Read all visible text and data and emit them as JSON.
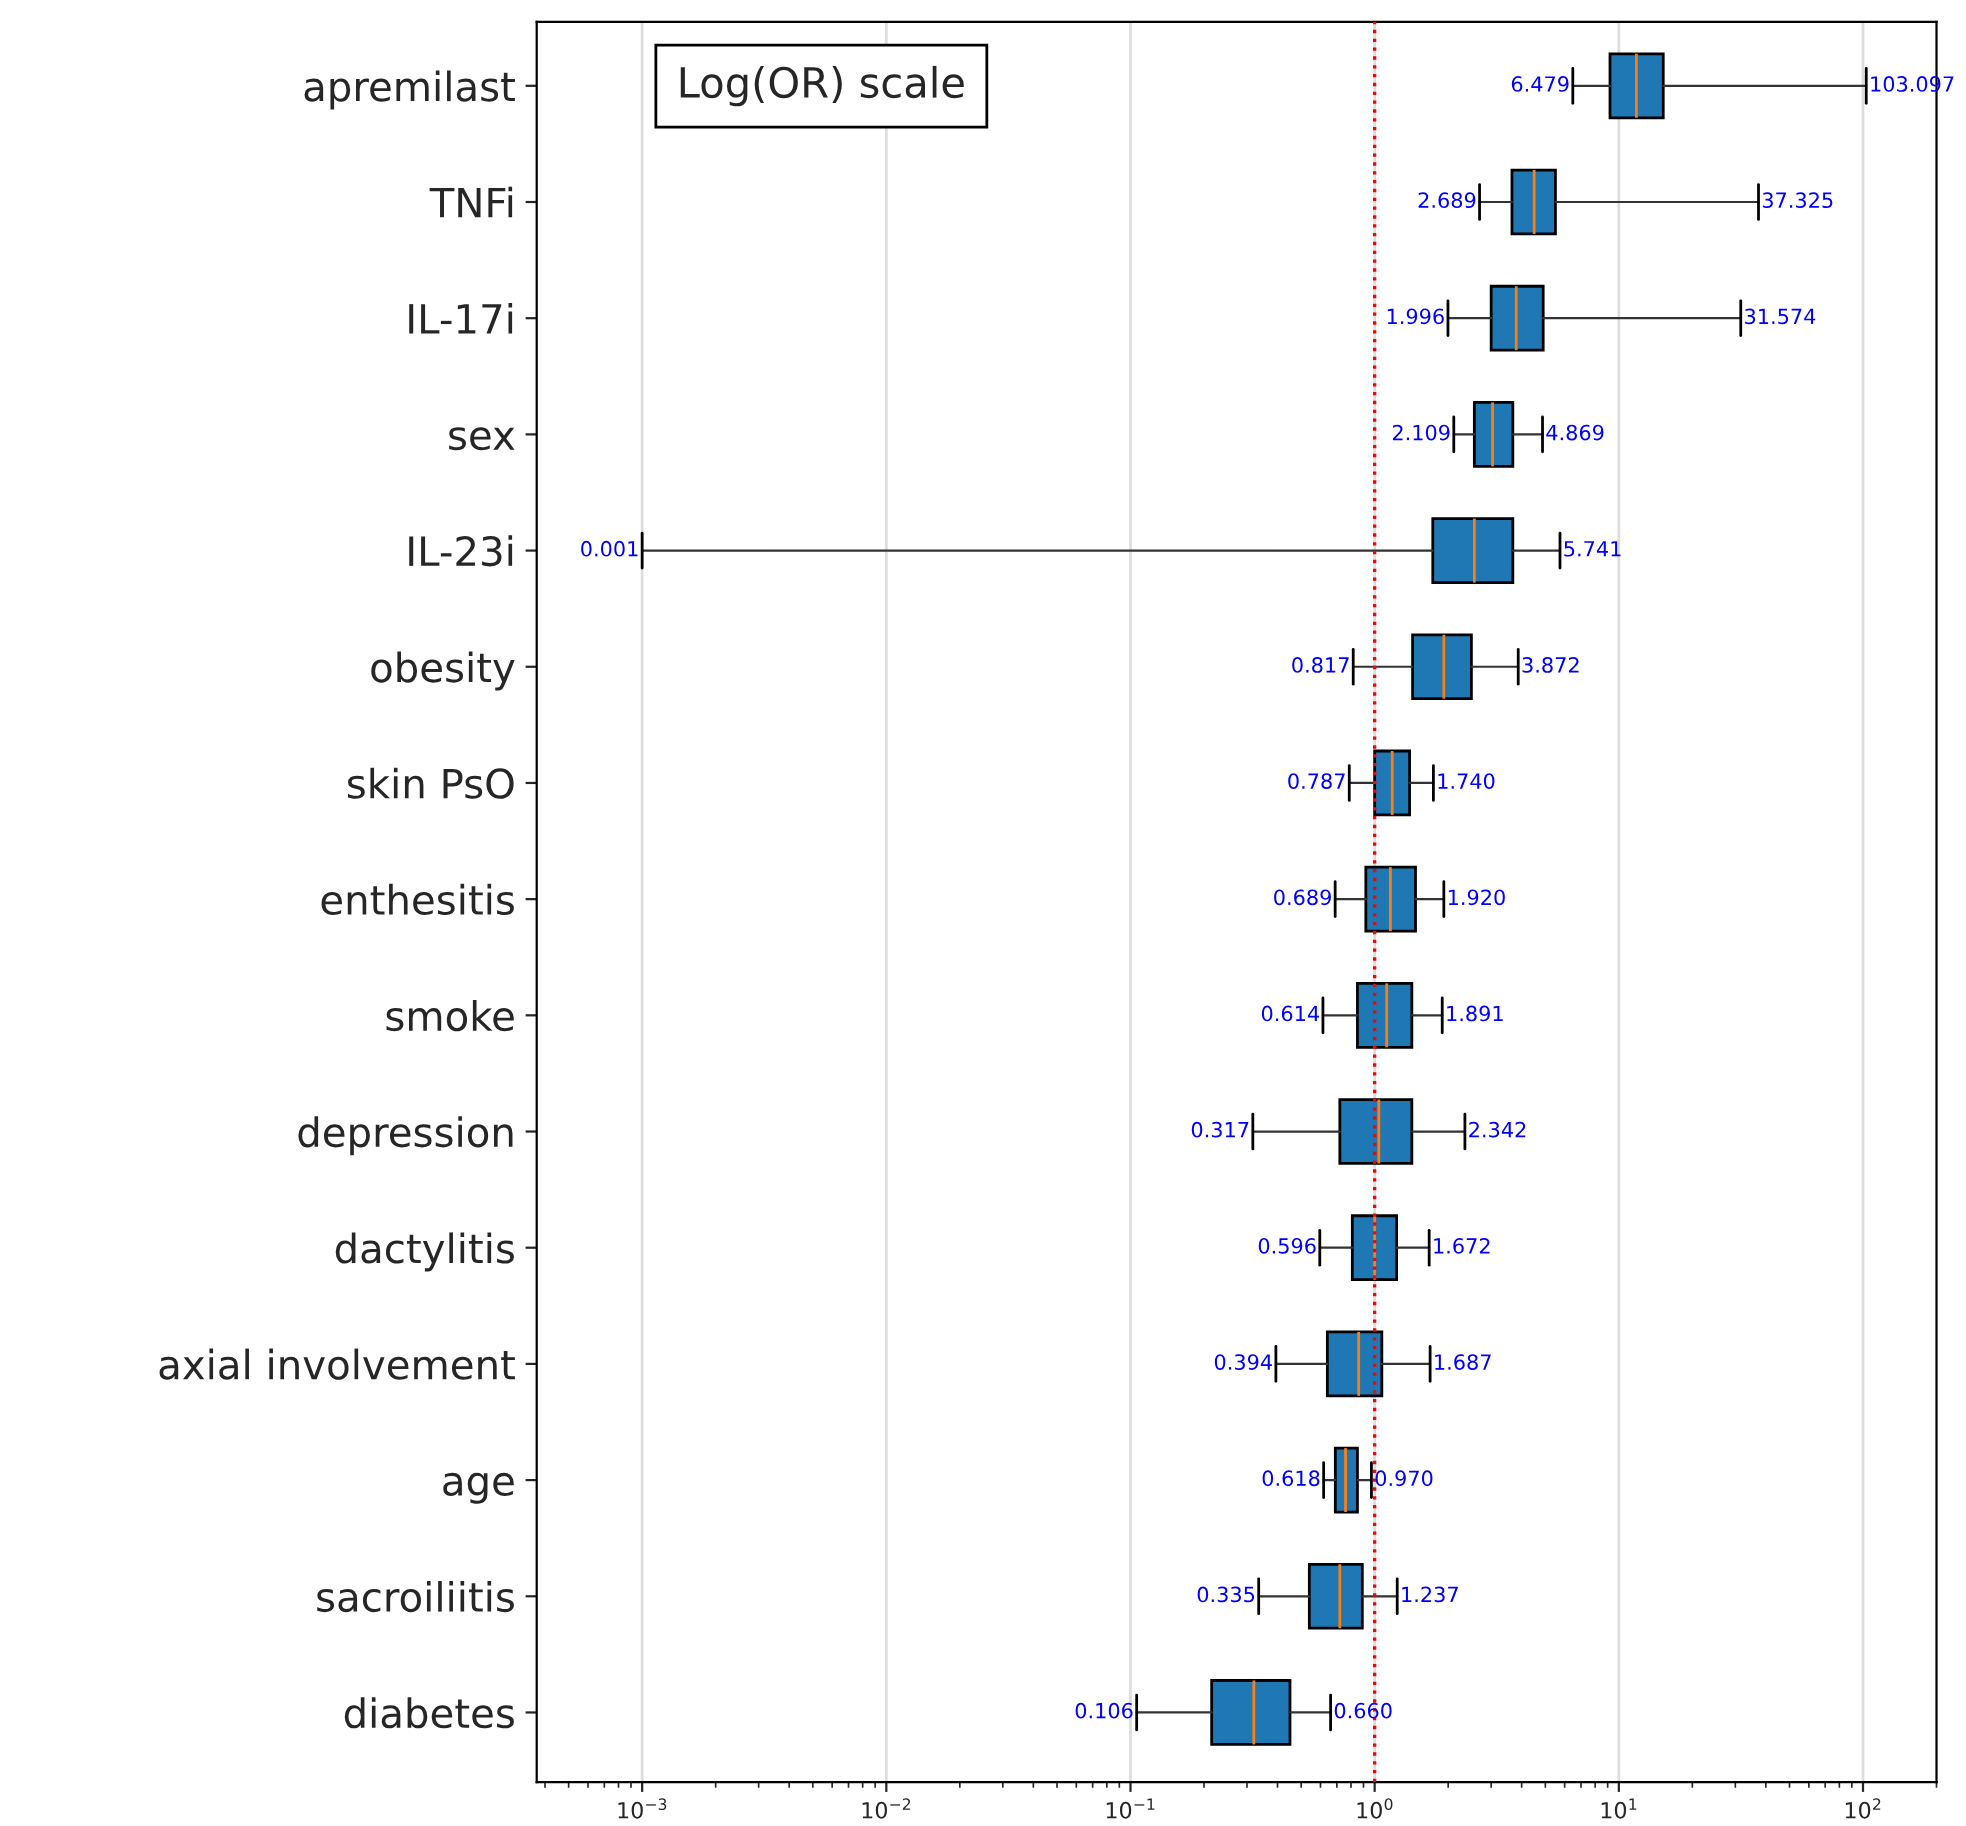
{
  "chart_data": {
    "type": "box",
    "orientation": "horizontal",
    "log": "x",
    "annotations": [
      "Log(OR) scale",
      {
        "text": "6.479",
        "x": 6.479,
        "y": "apremilast"
      },
      {
        "text": "103.097",
        "x": 103.097,
        "y": "apremilast"
      },
      {
        "text": "2.689",
        "x": 2.689,
        "y": "TNFi"
      },
      {
        "text": "37.325",
        "x": 37.325,
        "y": "TNFi"
      },
      {
        "text": "1.996",
        "x": 1.996,
        "y": "IL-17i"
      },
      {
        "text": "31.574",
        "x": 31.574,
        "y": "IL-17i"
      },
      {
        "text": "2.109",
        "x": 2.109,
        "y": "sex"
      },
      {
        "text": "4.869",
        "x": 4.869,
        "y": "sex"
      },
      {
        "text": "0.001",
        "x": 0.001,
        "y": "IL-23i"
      },
      {
        "text": "5.741",
        "x": 5.741,
        "y": "IL-23i"
      },
      {
        "text": "0.817",
        "x": 0.817,
        "y": "obesity"
      },
      {
        "text": "3.872",
        "x": 3.872,
        "y": "obesity"
      },
      {
        "text": "0.787",
        "x": 0.787,
        "y": "skin PsO"
      },
      {
        "text": "1.740",
        "x": 1.74,
        "y": "skin PsO"
      },
      {
        "text": "0.689",
        "x": 0.689,
        "y": "enthesitis"
      },
      {
        "text": "1.920",
        "x": 1.92,
        "y": "enthesitis"
      },
      {
        "text": "0.614",
        "x": 0.614,
        "y": "smoke"
      },
      {
        "text": "1.891",
        "x": 1.891,
        "y": "smoke"
      },
      {
        "text": "0.317",
        "x": 0.317,
        "y": "depression"
      },
      {
        "text": "2.342",
        "x": 2.342,
        "y": "depression"
      },
      {
        "text": "0.596",
        "x": 0.596,
        "y": "dactylitis"
      },
      {
        "text": "1.672",
        "x": 1.672,
        "y": "dactylitis"
      },
      {
        "text": "0.394",
        "x": 0.394,
        "y": "axial involvement"
      },
      {
        "text": "1.687",
        "x": 1.687,
        "y": "axial involvement"
      },
      {
        "text": "0.618",
        "x": 0.618,
        "y": "age"
      },
      {
        "text": "0.970",
        "x": 0.97,
        "y": "age"
      },
      {
        "text": "0.335",
        "x": 0.335,
        "y": "sacroiliitis"
      },
      {
        "text": "1.237",
        "x": 1.237,
        "y": "sacroiliitis"
      },
      {
        "text": "0.106",
        "x": 0.106,
        "y": "diabetes"
      },
      {
        "text": "0.660",
        "x": 0.66,
        "y": "diabetes"
      }
    ],
    "categories": [
      "apremilast",
      "TNFi",
      "IL-17i",
      "sex",
      "IL-23i",
      "obesity",
      "skin PsO",
      "enthesitis",
      "smoke",
      "depression",
      "dactylitis",
      "axial involvement",
      "age",
      "sacroiliitis",
      "diabetes"
    ],
    "boxes": [
      {
        "low": 6.479,
        "q1": 9.2,
        "median": 11.8,
        "q3": 15.2,
        "high": 103.097
      },
      {
        "low": 2.689,
        "q1": 3.65,
        "median": 4.5,
        "q3": 5.5,
        "high": 37.325
      },
      {
        "low": 1.996,
        "q1": 3.0,
        "median": 3.8,
        "q3": 4.9,
        "high": 31.574
      },
      {
        "low": 2.109,
        "q1": 2.56,
        "median": 3.04,
        "q3": 3.68,
        "high": 4.869
      },
      {
        "low": 0.001,
        "q1": 1.73,
        "median": 2.56,
        "q3": 3.68,
        "high": 5.741
      },
      {
        "low": 0.817,
        "q1": 1.43,
        "median": 1.92,
        "q3": 2.49,
        "high": 3.872
      },
      {
        "low": 0.787,
        "q1": 1.0,
        "median": 1.18,
        "q3": 1.39,
        "high": 1.74
      },
      {
        "low": 0.689,
        "q1": 0.92,
        "median": 1.16,
        "q3": 1.47,
        "high": 1.92
      },
      {
        "low": 0.614,
        "q1": 0.85,
        "median": 1.12,
        "q3": 1.42,
        "high": 1.891
      },
      {
        "low": 0.317,
        "q1": 0.72,
        "median": 1.04,
        "q3": 1.42,
        "high": 2.342
      },
      {
        "low": 0.596,
        "q1": 0.81,
        "median": 1.0,
        "q3": 1.23,
        "high": 1.672
      },
      {
        "low": 0.394,
        "q1": 0.64,
        "median": 0.86,
        "q3": 1.07,
        "high": 1.687
      },
      {
        "low": 0.618,
        "q1": 0.69,
        "median": 0.76,
        "q3": 0.85,
        "high": 0.97
      },
      {
        "low": 0.335,
        "q1": 0.54,
        "median": 0.72,
        "q3": 0.89,
        "high": 1.237
      },
      {
        "low": 0.106,
        "q1": 0.215,
        "median": 0.32,
        "q3": 0.45,
        "high": 0.66
      }
    ],
    "color": "#1f77b4",
    "xlim": [
      0.00037,
      200
    ],
    "xticks": [
      {
        "value": 0.001,
        "label": "10$^{−3}$"
      },
      {
        "value": 0.01,
        "label": "10$^{−2}$"
      },
      {
        "value": 0.1,
        "label": "10$^{−1}$"
      },
      {
        "value": 1,
        "label": "10$^{0}$"
      },
      {
        "value": 10,
        "label": "10$^{1}$"
      },
      {
        "value": 100,
        "label": "10$^{2}$"
      }
    ],
    "ref_lines": [
      {
        "axis": "x",
        "value": 1,
        "color": "#ff0000",
        "line_style": "dotted"
      }
    ],
    "grid": "x",
    "legend": false
  }
}
